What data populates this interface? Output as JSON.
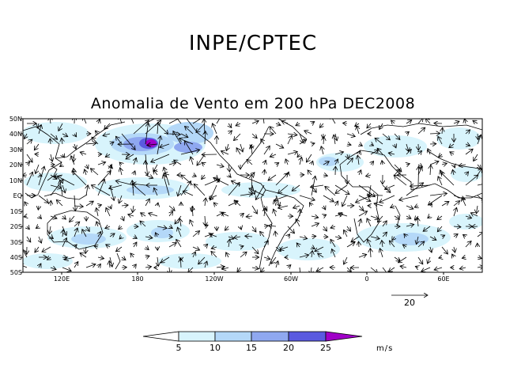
{
  "header": {
    "title": "INPE/CPTEC"
  },
  "map": {
    "title": "Anomalia de Vento em 200 hPa DEC2008",
    "lat_labels": [
      "50N",
      "40N",
      "30N",
      "20N",
      "10N",
      "EQ",
      "10S",
      "20S",
      "30S",
      "40S",
      "50S"
    ],
    "lon_labels": [
      "120E",
      "180",
      "120W",
      "60W",
      "0",
      "60E"
    ],
    "reference_vector": {
      "value": 20,
      "label": "20"
    }
  },
  "colorbar": {
    "labels": [
      "5",
      "10",
      "15",
      "20",
      "25"
    ],
    "units": "m/s",
    "colors": [
      "#ffffff",
      "#d8f4fc",
      "#b4d8f8",
      "#8fa8f0",
      "#5a5ae0",
      "#a000c8"
    ]
  },
  "colors": {
    "frame": "#000000",
    "coast": "#000000",
    "vector": "#000000"
  }
}
